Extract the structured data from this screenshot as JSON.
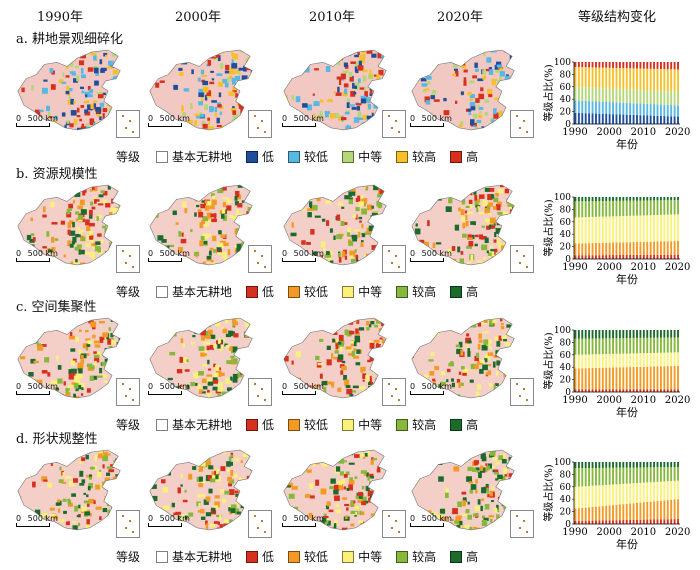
{
  "column_headers": [
    "1990年",
    "2000年",
    "2010年",
    "2020年",
    "等级结构变化"
  ],
  "scale_label": "500 km",
  "scale_zero": "0",
  "legend_title": "等级",
  "rows": [
    {
      "title": "a. 耕地景观细碎化",
      "legend": [
        {
          "label": "基本无耕地",
          "color": "#ffffff"
        },
        {
          "label": "低",
          "color": "#1f4e9c"
        },
        {
          "label": "较低",
          "color": "#58b7e3"
        },
        {
          "label": "中等",
          "color": "#b5d77a"
        },
        {
          "label": "较高",
          "color": "#f5c02a"
        },
        {
          "label": "高",
          "color": "#d7301f"
        }
      ]
    },
    {
      "title": "b. 资源规模性",
      "legend": [
        {
          "label": "基本无耕地",
          "color": "#ffffff"
        },
        {
          "label": "低",
          "color": "#d7301f"
        },
        {
          "label": "较低",
          "color": "#f39a25"
        },
        {
          "label": "中等",
          "color": "#fbf17a"
        },
        {
          "label": "较高",
          "color": "#86b83c"
        },
        {
          "label": "高",
          "color": "#1b6b2c"
        }
      ]
    },
    {
      "title": "c. 空间集聚性",
      "legend": [
        {
          "label": "基本无耕地",
          "color": "#ffffff"
        },
        {
          "label": "低",
          "color": "#d7301f"
        },
        {
          "label": "较低",
          "color": "#f39a25"
        },
        {
          "label": "中等",
          "color": "#fbf17a"
        },
        {
          "label": "较高",
          "color": "#86b83c"
        },
        {
          "label": "高",
          "color": "#1b6b2c"
        }
      ]
    },
    {
      "title": "d. 形状规整性",
      "legend": [
        {
          "label": "基本无耕地",
          "color": "#ffffff"
        },
        {
          "label": "低",
          "color": "#d7301f"
        },
        {
          "label": "较低",
          "color": "#f39a25"
        },
        {
          "label": "中等",
          "color": "#fbf17a"
        },
        {
          "label": "较高",
          "color": "#86b83c"
        },
        {
          "label": "高",
          "color": "#1b6b2c"
        }
      ]
    }
  ],
  "chart_data": [
    {
      "type": "bar",
      "stacked": true,
      "x_range": [
        1990,
        2020
      ],
      "xticks": [
        "1990",
        "2000",
        "2010",
        "2020"
      ],
      "xlabel": "年份",
      "ylabel": "等级占比(%)",
      "yticks": [
        "0",
        "20",
        "40",
        "60",
        "80",
        "100"
      ],
      "ylim": [
        0,
        100
      ],
      "series": [
        {
          "color": "#1f4e9c",
          "start": 18,
          "end": 12
        },
        {
          "color": "#58b7e3",
          "start": 20,
          "end": 18
        },
        {
          "color": "#b5d77a",
          "start": 22,
          "end": 22
        },
        {
          "color": "#f5c02a",
          "start": 32,
          "end": 36
        },
        {
          "color": "#d7301f",
          "start": 8,
          "end": 12
        }
      ]
    },
    {
      "type": "bar",
      "stacked": true,
      "x_range": [
        1990,
        2020
      ],
      "xticks": [
        "1990",
        "2000",
        "2010",
        "2020"
      ],
      "xlabel": "年份",
      "ylabel": "等级占比(%)",
      "yticks": [
        "0",
        "20",
        "40",
        "60",
        "80",
        "100"
      ],
      "ylim": [
        0,
        100
      ],
      "series": [
        {
          "color": "#d7301f",
          "start": 6,
          "end": 7
        },
        {
          "color": "#f39a25",
          "start": 19,
          "end": 22
        },
        {
          "color": "#fbf17a",
          "start": 42,
          "end": 43
        },
        {
          "color": "#86b83c",
          "start": 26,
          "end": 23
        },
        {
          "color": "#1b6b2c",
          "start": 7,
          "end": 5
        }
      ]
    },
    {
      "type": "bar",
      "stacked": true,
      "x_range": [
        1990,
        2020
      ],
      "xticks": [
        "1990",
        "2000",
        "2010",
        "2020"
      ],
      "xlabel": "年份",
      "ylabel": "等级占比(%)",
      "yticks": [
        "0",
        "20",
        "40",
        "60",
        "80",
        "100"
      ],
      "ylim": [
        0,
        100
      ],
      "series": [
        {
          "color": "#d7301f",
          "start": 4,
          "end": 4
        },
        {
          "color": "#f39a25",
          "start": 34,
          "end": 38
        },
        {
          "color": "#fbf17a",
          "start": 22,
          "end": 22
        },
        {
          "color": "#86b83c",
          "start": 26,
          "end": 24
        },
        {
          "color": "#1b6b2c",
          "start": 14,
          "end": 12
        }
      ]
    },
    {
      "type": "bar",
      "stacked": true,
      "x_range": [
        1990,
        2020
      ],
      "xticks": [
        "1990",
        "2000",
        "2010",
        "2020"
      ],
      "xlabel": "年份",
      "ylabel": "等级占比(%)",
      "yticks": [
        "0",
        "20",
        "40",
        "60",
        "80",
        "100"
      ],
      "ylim": [
        0,
        100
      ],
      "series": [
        {
          "color": "#d7301f",
          "start": 5,
          "end": 8
        },
        {
          "color": "#f39a25",
          "start": 20,
          "end": 32
        },
        {
          "color": "#fbf17a",
          "start": 35,
          "end": 30
        },
        {
          "color": "#86b83c",
          "start": 30,
          "end": 22
        },
        {
          "color": "#1b6b2c",
          "start": 10,
          "end": 8
        }
      ]
    }
  ]
}
